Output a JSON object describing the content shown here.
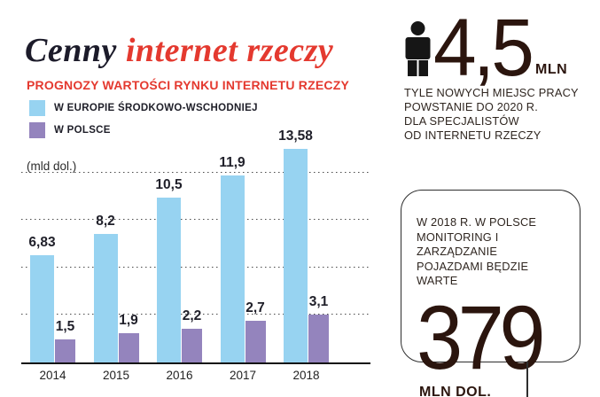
{
  "title": {
    "prefix": "Cenny ",
    "highlight": "internet rzeczy"
  },
  "chart_data": {
    "type": "bar",
    "title": "PROGNOZY WARTOŚCI RYNKU INTERNETU RZECZY",
    "ylabel": "(mld dol.)",
    "categories": [
      "2014",
      "2015",
      "2016",
      "2017",
      "2018"
    ],
    "series": [
      {
        "name": "W EUROPIE ŚRODKOWO-WSCHODNIEJ",
        "color": "#97d3f1",
        "values": [
          6.83,
          8.2,
          10.5,
          11.9,
          13.58
        ],
        "labels": [
          "6,83",
          "8,2",
          "10,5",
          "11,9",
          "13,58"
        ]
      },
      {
        "name": "W POLSCE",
        "color": "#9484bd",
        "values": [
          1.5,
          1.9,
          2.2,
          2.7,
          3.1
        ],
        "labels": [
          "1,5",
          "1,9",
          "2,2",
          "2,7",
          "3,1"
        ]
      }
    ],
    "ylim": [
      0,
      13.72
    ],
    "gridlines": [
      3,
      6,
      9,
      12
    ],
    "grid": "dotted-horizontal",
    "legend_position": "top-left"
  },
  "stat_jobs": {
    "icon": "person-icon",
    "value": "4,5",
    "unit": "MLN",
    "description_lines": [
      "TYLE NOWYCH MIEJSC PRACY",
      "POWSTANIE DO 2020 R.",
      "DLA SPECJALISTÓW",
      "OD INTERNETU RZECZY"
    ]
  },
  "stat_vehicles": {
    "description_lines": [
      "W 2018 R. W POLSCE",
      "MONITORING I ZARZĄDZANIE",
      "POJAZDAMI BĘDZIE WARTE"
    ],
    "value": "379",
    "unit": "MLN DOL."
  },
  "colors": {
    "accent_red": "#e4392f",
    "title_dark": "#1c1b2a",
    "bar_blue": "#97d3f1",
    "bar_purple": "#9484bd",
    "big_number": "#2b150e",
    "axis": "#141414"
  }
}
